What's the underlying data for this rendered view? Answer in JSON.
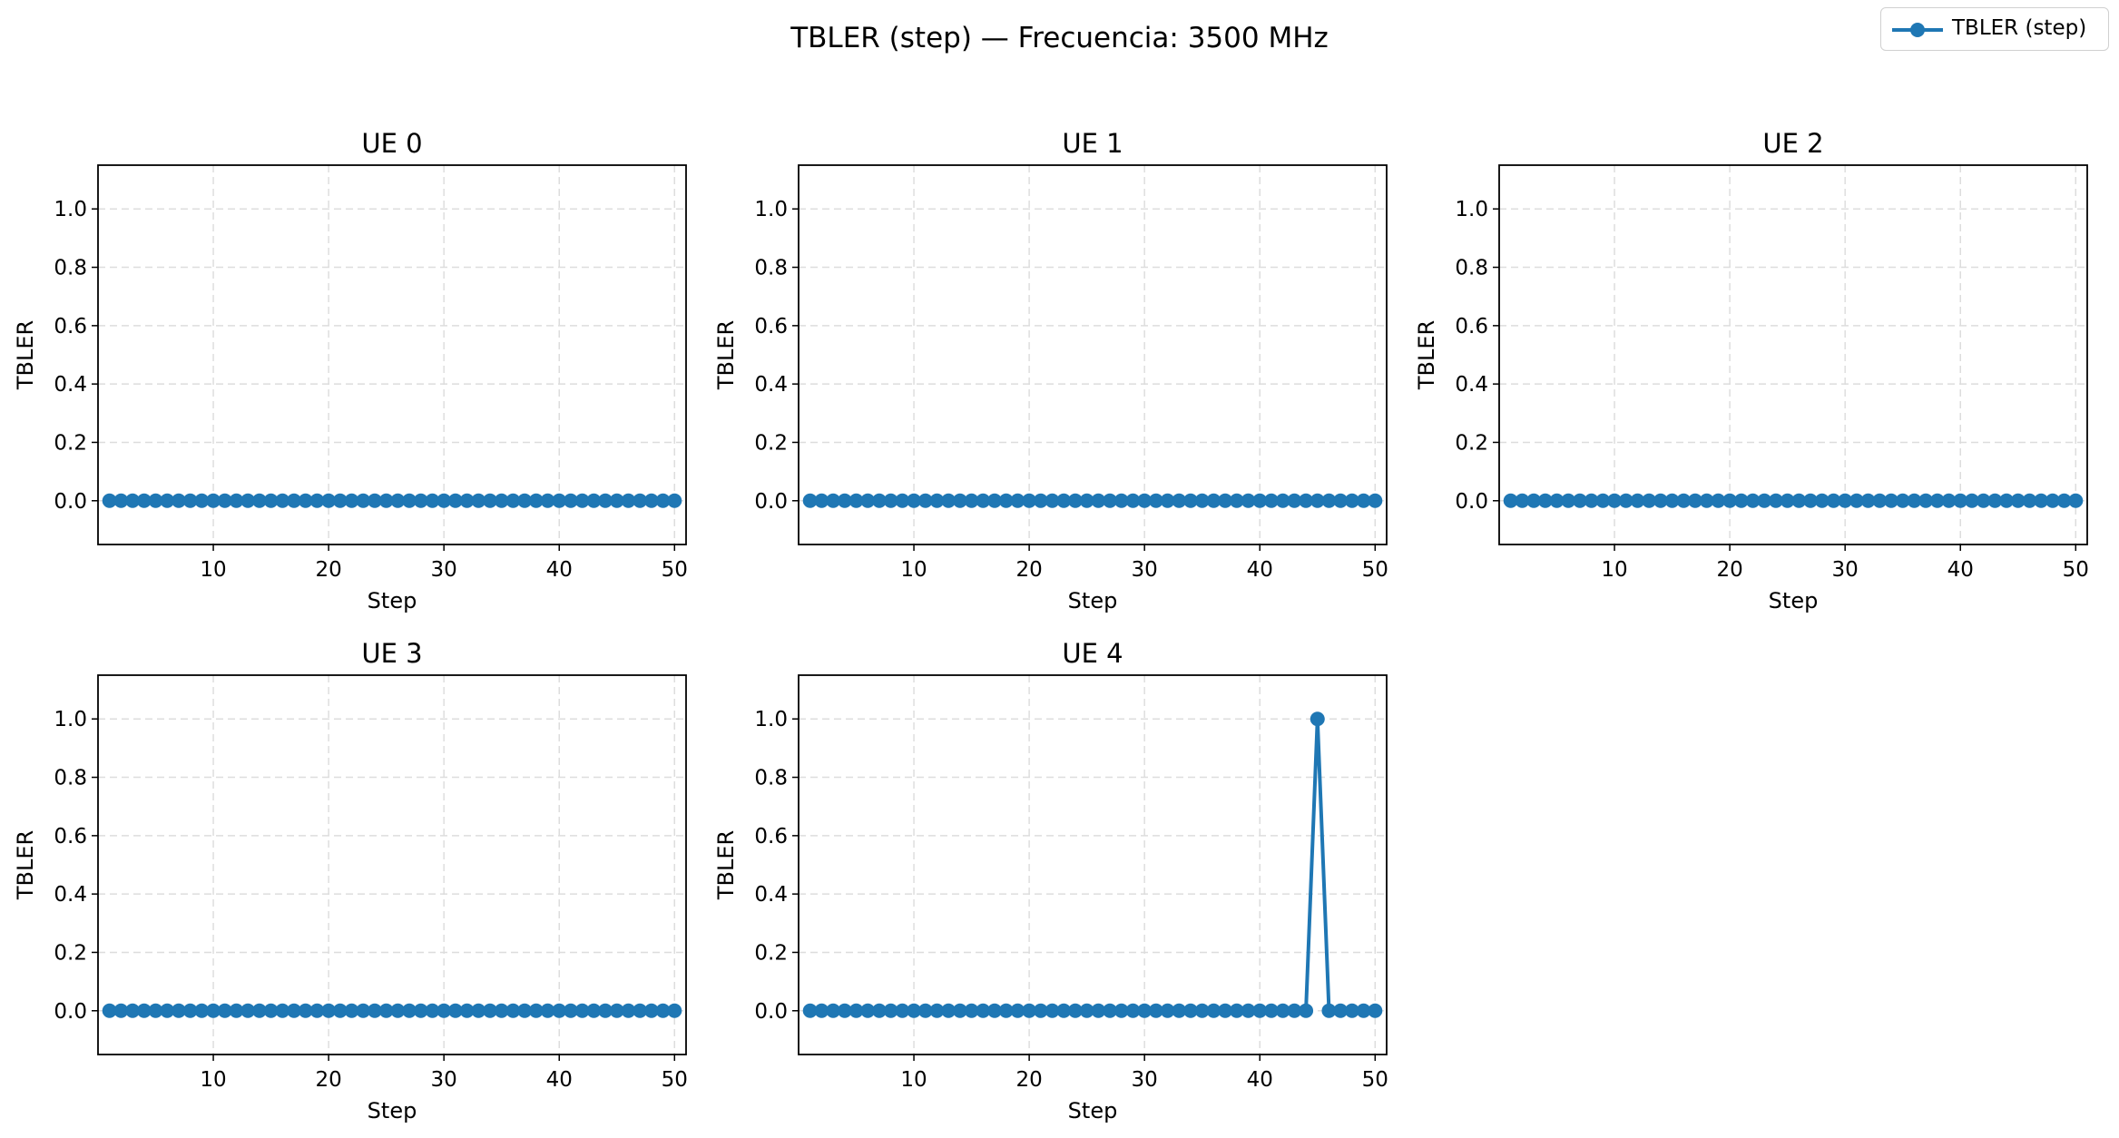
{
  "figure": {
    "suptitle": "TBLER (step) — Frecuencia: 3500 MHz",
    "legend": {
      "label": "TBLER (step)",
      "placement": "top-right"
    },
    "series_color": "#1f77b4",
    "grid_color": "#dddddd"
  },
  "chart_data": [
    {
      "type": "line",
      "title": "UE 0",
      "xlabel": "Step",
      "ylabel": "TBLER",
      "xlim": [
        0,
        51
      ],
      "ylim": [
        -0.15,
        1.15
      ],
      "xticks": [
        "10",
        "20",
        "30",
        "40",
        "50"
      ],
      "yticks": [
        "0.0",
        "0.2",
        "0.4",
        "0.6",
        "0.8",
        "1.0"
      ],
      "grid": true,
      "x_start": 1,
      "series": [
        {
          "name": "TBLER (step)",
          "values": [
            0,
            0,
            0,
            0,
            0,
            0,
            0,
            0,
            0,
            0,
            0,
            0,
            0,
            0,
            0,
            0,
            0,
            0,
            0,
            0,
            0,
            0,
            0,
            0,
            0,
            0,
            0,
            0,
            0,
            0,
            0,
            0,
            0,
            0,
            0,
            0,
            0,
            0,
            0,
            0,
            0,
            0,
            0,
            0,
            0,
            0,
            0,
            0,
            0,
            0
          ]
        }
      ]
    },
    {
      "type": "line",
      "title": "UE 1",
      "xlabel": "Step",
      "ylabel": "TBLER",
      "xlim": [
        0,
        51
      ],
      "ylim": [
        -0.15,
        1.15
      ],
      "xticks": [
        "10",
        "20",
        "30",
        "40",
        "50"
      ],
      "yticks": [
        "0.0",
        "0.2",
        "0.4",
        "0.6",
        "0.8",
        "1.0"
      ],
      "grid": true,
      "x_start": 1,
      "series": [
        {
          "name": "TBLER (step)",
          "values": [
            0,
            0,
            0,
            0,
            0,
            0,
            0,
            0,
            0,
            0,
            0,
            0,
            0,
            0,
            0,
            0,
            0,
            0,
            0,
            0,
            0,
            0,
            0,
            0,
            0,
            0,
            0,
            0,
            0,
            0,
            0,
            0,
            0,
            0,
            0,
            0,
            0,
            0,
            0,
            0,
            0,
            0,
            0,
            0,
            0,
            0,
            0,
            0,
            0,
            0
          ]
        }
      ]
    },
    {
      "type": "line",
      "title": "UE 2",
      "xlabel": "Step",
      "ylabel": "TBLER",
      "xlim": [
        0,
        51
      ],
      "ylim": [
        -0.15,
        1.15
      ],
      "xticks": [
        "10",
        "20",
        "30",
        "40",
        "50"
      ],
      "yticks": [
        "0.0",
        "0.2",
        "0.4",
        "0.6",
        "0.8",
        "1.0"
      ],
      "grid": true,
      "x_start": 1,
      "series": [
        {
          "name": "TBLER (step)",
          "values": [
            0,
            0,
            0,
            0,
            0,
            0,
            0,
            0,
            0,
            0,
            0,
            0,
            0,
            0,
            0,
            0,
            0,
            0,
            0,
            0,
            0,
            0,
            0,
            0,
            0,
            0,
            0,
            0,
            0,
            0,
            0,
            0,
            0,
            0,
            0,
            0,
            0,
            0,
            0,
            0,
            0,
            0,
            0,
            0,
            0,
            0,
            0,
            0,
            0,
            0
          ]
        }
      ]
    },
    {
      "type": "line",
      "title": "UE 3",
      "xlabel": "Step",
      "ylabel": "TBLER",
      "xlim": [
        0,
        51
      ],
      "ylim": [
        -0.15,
        1.15
      ],
      "xticks": [
        "10",
        "20",
        "30",
        "40",
        "50"
      ],
      "yticks": [
        "0.0",
        "0.2",
        "0.4",
        "0.6",
        "0.8",
        "1.0"
      ],
      "grid": true,
      "x_start": 1,
      "series": [
        {
          "name": "TBLER (step)",
          "values": [
            0,
            0,
            0,
            0,
            0,
            0,
            0,
            0,
            0,
            0,
            0,
            0,
            0,
            0,
            0,
            0,
            0,
            0,
            0,
            0,
            0,
            0,
            0,
            0,
            0,
            0,
            0,
            0,
            0,
            0,
            0,
            0,
            0,
            0,
            0,
            0,
            0,
            0,
            0,
            0,
            0,
            0,
            0,
            0,
            0,
            0,
            0,
            0,
            0,
            0
          ]
        }
      ]
    },
    {
      "type": "line",
      "title": "UE 4",
      "xlabel": "Step",
      "ylabel": "TBLER",
      "xlim": [
        0,
        51
      ],
      "ylim": [
        -0.15,
        1.15
      ],
      "xticks": [
        "10",
        "20",
        "30",
        "40",
        "50"
      ],
      "yticks": [
        "0.0",
        "0.2",
        "0.4",
        "0.6",
        "0.8",
        "1.0"
      ],
      "grid": true,
      "x_start": 1,
      "series": [
        {
          "name": "TBLER (step)",
          "values": [
            0,
            0,
            0,
            0,
            0,
            0,
            0,
            0,
            0,
            0,
            0,
            0,
            0,
            0,
            0,
            0,
            0,
            0,
            0,
            0,
            0,
            0,
            0,
            0,
            0,
            0,
            0,
            0,
            0,
            0,
            0,
            0,
            0,
            0,
            0,
            0,
            0,
            0,
            0,
            0,
            0,
            0,
            0,
            0,
            1,
            0,
            0,
            0,
            0,
            0
          ]
        }
      ]
    }
  ]
}
